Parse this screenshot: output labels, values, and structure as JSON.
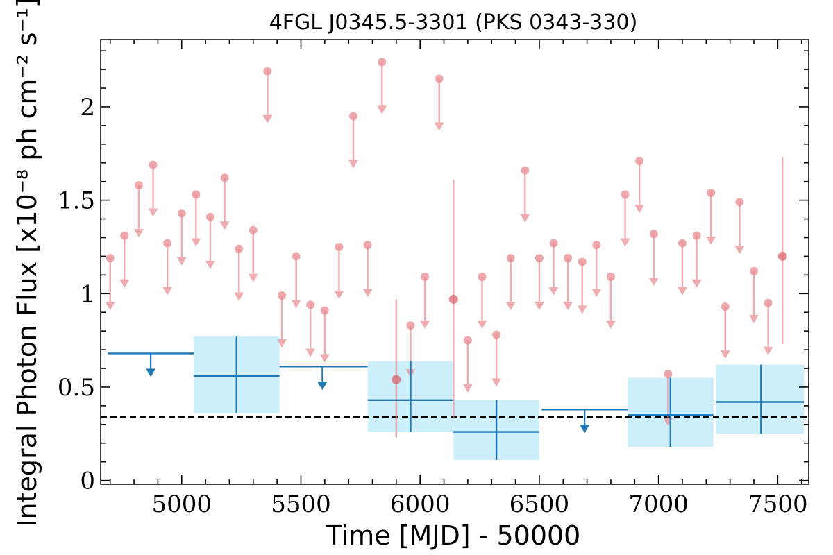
{
  "chart_data": {
    "type": "scatter",
    "title": "4FGL J0345.5-3301 (PKS 0343-330)",
    "xlabel": "Time [MJD] - 50000",
    "ylabel": "Integral Photon Flux [x10⁻⁸ ph cm⁻² s⁻¹]",
    "xlim": [
      4660,
      7630
    ],
    "ylim": [
      -0.02,
      2.36
    ],
    "x_ticks": [
      5000,
      5500,
      6000,
      6500,
      7000,
      7500
    ],
    "y_ticks": [
      0,
      0.5,
      1,
      1.5,
      2
    ],
    "x_tick_labels": [
      "5000",
      "5500",
      "6000",
      "6500",
      "7000",
      "7500"
    ],
    "y_tick_labels": [
      "0",
      "0.5",
      "1",
      "1.5",
      "2"
    ],
    "baseline": 0.34,
    "colors": {
      "short_bins": "#e8898f",
      "long_bins": "#1f77b4",
      "long_band": "#cdeefb",
      "baseline": "#000000"
    },
    "series": [
      {
        "kind": "short_upper_limits",
        "points": [
          {
            "x": 4700,
            "y": 1.19
          },
          {
            "x": 4760,
            "y": 1.31
          },
          {
            "x": 4820,
            "y": 1.58
          },
          {
            "x": 4880,
            "y": 1.69
          },
          {
            "x": 4940,
            "y": 1.27
          },
          {
            "x": 5000,
            "y": 1.43
          },
          {
            "x": 5060,
            "y": 1.53
          },
          {
            "x": 5120,
            "y": 1.41
          },
          {
            "x": 5180,
            "y": 1.62
          },
          {
            "x": 5240,
            "y": 1.24
          },
          {
            "x": 5300,
            "y": 1.34
          },
          {
            "x": 5360,
            "y": 2.19
          },
          {
            "x": 5420,
            "y": 0.99
          },
          {
            "x": 5480,
            "y": 1.2
          },
          {
            "x": 5540,
            "y": 0.94
          },
          {
            "x": 5600,
            "y": 0.91
          },
          {
            "x": 5660,
            "y": 1.25
          },
          {
            "x": 5720,
            "y": 1.95
          },
          {
            "x": 5780,
            "y": 1.26
          },
          {
            "x": 5840,
            "y": 2.24
          },
          {
            "x": 5960,
            "y": 0.83
          },
          {
            "x": 6020,
            "y": 1.09
          },
          {
            "x": 6080,
            "y": 2.15
          },
          {
            "x": 6200,
            "y": 0.75
          },
          {
            "x": 6260,
            "y": 1.09
          },
          {
            "x": 6320,
            "y": 0.78
          },
          {
            "x": 6380,
            "y": 1.19
          },
          {
            "x": 6440,
            "y": 1.66
          },
          {
            "x": 6500,
            "y": 1.19
          },
          {
            "x": 6560,
            "y": 1.27
          },
          {
            "x": 6620,
            "y": 1.19
          },
          {
            "x": 6680,
            "y": 1.17
          },
          {
            "x": 6740,
            "y": 1.26
          },
          {
            "x": 6800,
            "y": 1.09
          },
          {
            "x": 6860,
            "y": 1.53
          },
          {
            "x": 6920,
            "y": 1.71
          },
          {
            "x": 6980,
            "y": 1.32
          },
          {
            "x": 7040,
            "y": 0.57
          },
          {
            "x": 7100,
            "y": 1.27
          },
          {
            "x": 7160,
            "y": 1.31
          },
          {
            "x": 7220,
            "y": 1.54
          },
          {
            "x": 7280,
            "y": 0.93
          },
          {
            "x": 7340,
            "y": 1.49
          },
          {
            "x": 7400,
            "y": 1.12
          },
          {
            "x": 7460,
            "y": 0.95
          }
        ]
      },
      {
        "kind": "short_detections",
        "points": [
          {
            "x": 5900,
            "y": 0.54,
            "ylo": 0.23,
            "yhi": 0.97
          },
          {
            "x": 6140,
            "y": 0.97,
            "ylo": 0.33,
            "yhi": 1.61
          },
          {
            "x": 7520,
            "y": 1.2,
            "ylo": 0.73,
            "yhi": 1.73
          }
        ]
      },
      {
        "kind": "long_detections",
        "points": [
          {
            "x": 5230,
            "x0": 5050,
            "x1": 5410,
            "y": 0.56,
            "ylo": 0.36,
            "yhi": 0.77
          },
          {
            "x": 5960,
            "x0": 5780,
            "x1": 6140,
            "y": 0.43,
            "ylo": 0.26,
            "yhi": 0.64
          },
          {
            "x": 6320,
            "x0": 6140,
            "x1": 6500,
            "y": 0.26,
            "ylo": 0.11,
            "yhi": 0.43
          },
          {
            "x": 7050,
            "x0": 6870,
            "x1": 7230,
            "y": 0.35,
            "ylo": 0.18,
            "yhi": 0.55
          },
          {
            "x": 7430,
            "x0": 7240,
            "x1": 7610,
            "y": 0.42,
            "ylo": 0.25,
            "yhi": 0.62
          }
        ]
      },
      {
        "kind": "long_upper_limits",
        "points": [
          {
            "x": 4870,
            "x0": 4690,
            "x1": 5050,
            "y": 0.68
          },
          {
            "x": 5590,
            "x0": 5410,
            "x1": 5780,
            "y": 0.61
          },
          {
            "x": 6690,
            "x0": 6510,
            "x1": 6870,
            "y": 0.38
          }
        ]
      }
    ]
  }
}
